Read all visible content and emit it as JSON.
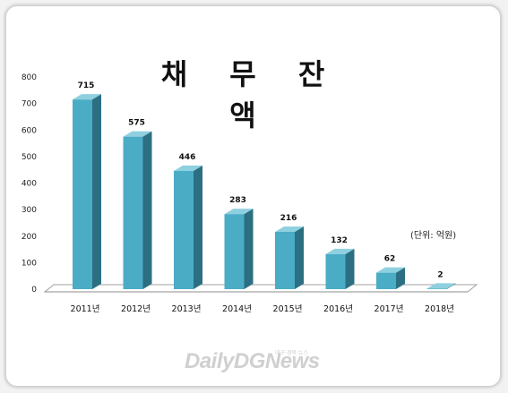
{
  "chart_data": {
    "type": "bar",
    "title": "채 무 잔 액",
    "unit_note": "(단위: 억원)",
    "categories": [
      "2011년",
      "2012년",
      "2013년",
      "2014년",
      "2015년",
      "2016년",
      "2017년",
      "2018년"
    ],
    "values": [
      715,
      575,
      446,
      283,
      216,
      132,
      62,
      2
    ],
    "ylim": [
      0,
      800
    ],
    "yticks": [
      0,
      100,
      200,
      300,
      400,
      500,
      600,
      700,
      800
    ],
    "grid": false,
    "colors": {
      "bar_front": "#4bacc6",
      "bar_side": "#2c6f82",
      "bar_top": "#8fd0e0",
      "floor": "#ffffff"
    }
  },
  "watermark": {
    "brand": "DailyDGNews",
    "small": "대구·경북 뉴스"
  }
}
